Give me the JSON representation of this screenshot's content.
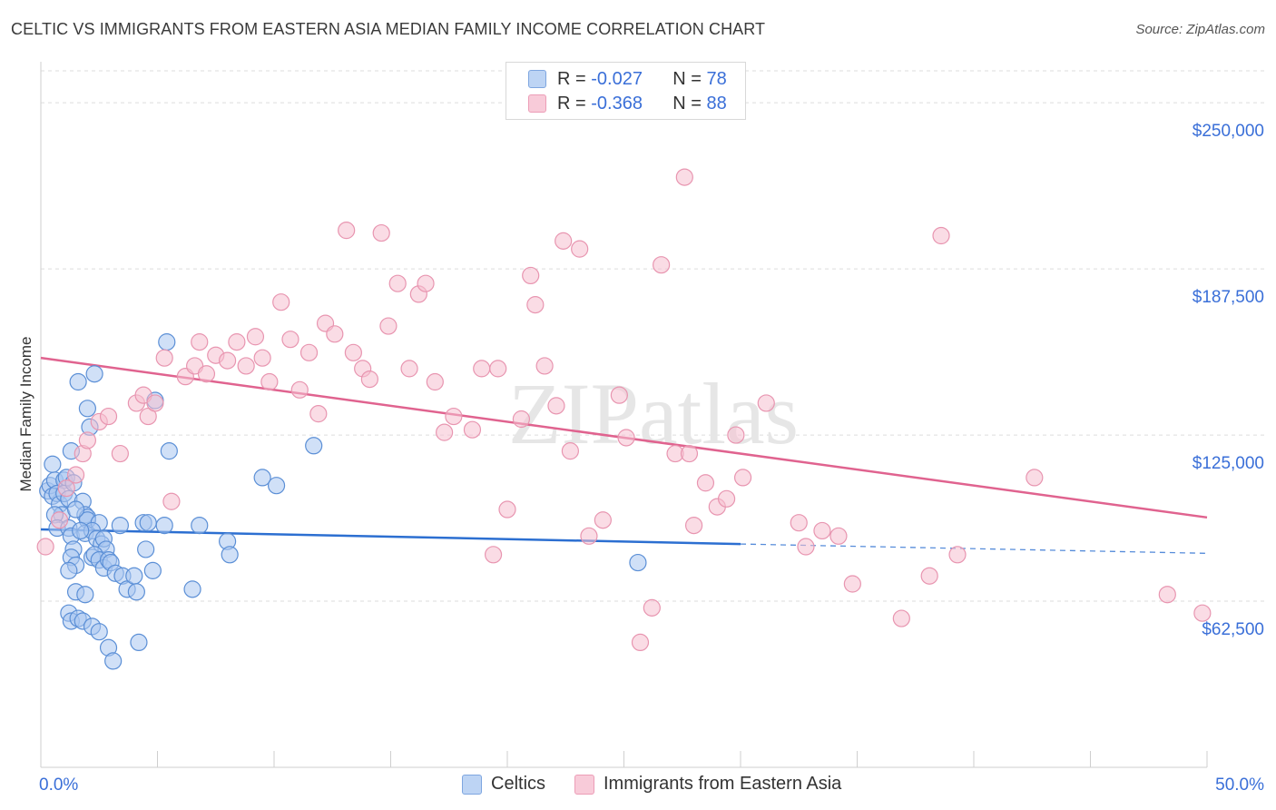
{
  "header": {
    "title": "CELTIC VS IMMIGRANTS FROM EASTERN ASIA MEDIAN FAMILY INCOME CORRELATION CHART",
    "source": "Source: ZipAtlas.com"
  },
  "legend": {
    "rows": [
      {
        "r_label": "R = ",
        "r_value": "-0.027",
        "n_label": "N = ",
        "n_value": "78"
      },
      {
        "r_label": "R = ",
        "r_value": "-0.368",
        "n_label": "N = ",
        "n_value": "88"
      }
    ]
  },
  "bottom_legend": [
    "Celtics",
    "Immigrants from Eastern Asia"
  ],
  "watermark": "ZIPatlas",
  "colors": {
    "celtics_fill": "#a9c7f0",
    "celtics_stroke": "#5b8fd6",
    "celtics_line": "#2c6fd1",
    "immig_fill": "#f6bfd0",
    "immig_stroke": "#e895b0",
    "immig_line": "#e0638f",
    "tick_label": "#3a6fd8",
    "grid": "#dedede"
  },
  "chart_data": {
    "type": "scatter",
    "title": "CELTIC VS IMMIGRANTS FROM EASTERN ASIA MEDIAN FAMILY INCOME CORRELATION CHART",
    "xlabel": "",
    "ylabel": "Median Family Income",
    "xlim": [
      0,
      50
    ],
    "ylim": [
      0,
      262000
    ],
    "x_tick_labels": [
      "0.0%",
      "50.0%"
    ],
    "y_ticks": [
      62500,
      125000,
      187500,
      250000
    ],
    "y_tick_labels": [
      "$62,500",
      "$125,000",
      "$187,500",
      "$250,000"
    ],
    "grid": "horizontal dashed",
    "legend_position": "top-center",
    "series": [
      {
        "name": "Celtics",
        "r": -0.027,
        "n": 78,
        "trend": {
          "x": [
            0,
            30
          ],
          "y": [
            89500,
            84000
          ],
          "dashed_extension_to": [
            50,
            80500
          ]
        },
        "points": [
          [
            0.3,
            104000
          ],
          [
            0.4,
            106000
          ],
          [
            0.5,
            102000
          ],
          [
            0.6,
            108000
          ],
          [
            0.5,
            114000
          ],
          [
            0.7,
            103000
          ],
          [
            0.8,
            99000
          ],
          [
            0.9,
            95000
          ],
          [
            0.6,
            95000
          ],
          [
            0.7,
            90000
          ],
          [
            1.0,
            108000
          ],
          [
            1.1,
            109000
          ],
          [
            1.0,
            103000
          ],
          [
            1.2,
            101000
          ],
          [
            1.4,
            107000
          ],
          [
            1.8,
            100000
          ],
          [
            1.9,
            95000
          ],
          [
            2.0,
            94000
          ],
          [
            2.0,
            93000
          ],
          [
            1.5,
            97000
          ],
          [
            1.2,
            90000
          ],
          [
            1.3,
            87000
          ],
          [
            1.4,
            82000
          ],
          [
            1.3,
            79000
          ],
          [
            1.5,
            76000
          ],
          [
            1.2,
            74000
          ],
          [
            2.5,
            92000
          ],
          [
            1.9,
            88000
          ],
          [
            2.2,
            89000
          ],
          [
            2.4,
            86000
          ],
          [
            2.6,
            84000
          ],
          [
            2.7,
            86000
          ],
          [
            2.8,
            82000
          ],
          [
            2.2,
            79000
          ],
          [
            2.3,
            80000
          ],
          [
            2.5,
            78000
          ],
          [
            2.7,
            75000
          ],
          [
            2.9,
            78000
          ],
          [
            3.0,
            77000
          ],
          [
            3.2,
            73000
          ],
          [
            3.5,
            72000
          ],
          [
            3.7,
            67000
          ],
          [
            4.0,
            72000
          ],
          [
            4.1,
            66000
          ],
          [
            4.4,
            92000
          ],
          [
            4.6,
            92000
          ],
          [
            4.5,
            82000
          ],
          [
            4.8,
            74000
          ],
          [
            5.3,
            91000
          ],
          [
            3.4,
            91000
          ],
          [
            1.5,
            66000
          ],
          [
            1.9,
            65000
          ],
          [
            1.2,
            58000
          ],
          [
            1.3,
            55000
          ],
          [
            1.6,
            56000
          ],
          [
            1.8,
            55000
          ],
          [
            2.2,
            53000
          ],
          [
            2.5,
            51000
          ],
          [
            2.9,
            45000
          ],
          [
            3.1,
            40000
          ],
          [
            4.2,
            47000
          ],
          [
            1.6,
            145000
          ],
          [
            2.0,
            135000
          ],
          [
            2.1,
            128000
          ],
          [
            2.3,
            148000
          ],
          [
            1.3,
            119000
          ],
          [
            5.5,
            119000
          ],
          [
            4.9,
            138000
          ],
          [
            5.4,
            160000
          ],
          [
            6.8,
            91000
          ],
          [
            6.5,
            67000
          ],
          [
            8.0,
            85000
          ],
          [
            8.1,
            80000
          ],
          [
            9.5,
            109000
          ],
          [
            10.1,
            106000
          ],
          [
            11.7,
            121000
          ],
          [
            25.6,
            77000
          ],
          [
            1.7,
            89000
          ]
        ]
      },
      {
        "name": "Immigrants from Eastern Asia",
        "r": -0.368,
        "n": 88,
        "trend": {
          "x": [
            0,
            50
          ],
          "y": [
            154000,
            94000
          ]
        },
        "points": [
          [
            0.2,
            83000
          ],
          [
            0.8,
            93000
          ],
          [
            1.1,
            105000
          ],
          [
            1.5,
            110000
          ],
          [
            1.8,
            118000
          ],
          [
            2.0,
            123000
          ],
          [
            2.5,
            130000
          ],
          [
            2.9,
            132000
          ],
          [
            3.4,
            118000
          ],
          [
            4.1,
            137000
          ],
          [
            4.4,
            140000
          ],
          [
            4.6,
            132000
          ],
          [
            4.9,
            137000
          ],
          [
            5.3,
            154000
          ],
          [
            5.6,
            100000
          ],
          [
            6.2,
            147000
          ],
          [
            6.6,
            151000
          ],
          [
            6.8,
            160000
          ],
          [
            7.1,
            148000
          ],
          [
            7.5,
            155000
          ],
          [
            8.0,
            153000
          ],
          [
            8.4,
            160000
          ],
          [
            8.8,
            151000
          ],
          [
            9.2,
            162000
          ],
          [
            9.5,
            154000
          ],
          [
            9.8,
            145000
          ],
          [
            10.3,
            175000
          ],
          [
            10.7,
            161000
          ],
          [
            11.1,
            142000
          ],
          [
            11.5,
            156000
          ],
          [
            11.9,
            133000
          ],
          [
            12.2,
            167000
          ],
          [
            12.6,
            163000
          ],
          [
            13.1,
            202000
          ],
          [
            13.4,
            156000
          ],
          [
            13.8,
            150000
          ],
          [
            14.1,
            146000
          ],
          [
            14.6,
            201000
          ],
          [
            14.9,
            166000
          ],
          [
            15.3,
            182000
          ],
          [
            15.8,
            150000
          ],
          [
            16.2,
            178000
          ],
          [
            16.5,
            182000
          ],
          [
            16.9,
            145000
          ],
          [
            17.3,
            126000
          ],
          [
            17.7,
            132000
          ],
          [
            18.5,
            127000
          ],
          [
            18.9,
            150000
          ],
          [
            19.4,
            80000
          ],
          [
            19.6,
            150000
          ],
          [
            20.0,
            97000
          ],
          [
            20.6,
            131000
          ],
          [
            21.0,
            185000
          ],
          [
            21.2,
            174000
          ],
          [
            21.6,
            151000
          ],
          [
            22.1,
            136000
          ],
          [
            22.4,
            198000
          ],
          [
            22.7,
            119000
          ],
          [
            23.1,
            195000
          ],
          [
            23.5,
            87000
          ],
          [
            24.1,
            93000
          ],
          [
            24.8,
            140000
          ],
          [
            25.1,
            124000
          ],
          [
            25.7,
            47000
          ],
          [
            26.2,
            60000
          ],
          [
            26.6,
            189000
          ],
          [
            27.2,
            118000
          ],
          [
            27.6,
            222000
          ],
          [
            27.8,
            118000
          ],
          [
            28.0,
            91000
          ],
          [
            28.5,
            107000
          ],
          [
            29.0,
            98000
          ],
          [
            29.4,
            101000
          ],
          [
            29.8,
            125000
          ],
          [
            30.1,
            109000
          ],
          [
            31.1,
            137000
          ],
          [
            32.5,
            92000
          ],
          [
            32.8,
            83000
          ],
          [
            33.5,
            89000
          ],
          [
            34.2,
            87000
          ],
          [
            34.8,
            69000
          ],
          [
            36.9,
            56000
          ],
          [
            38.1,
            72000
          ],
          [
            38.6,
            200000
          ],
          [
            39.3,
            80000
          ],
          [
            42.6,
            109000
          ],
          [
            48.3,
            65000
          ],
          [
            49.8,
            58000
          ]
        ]
      }
    ]
  }
}
